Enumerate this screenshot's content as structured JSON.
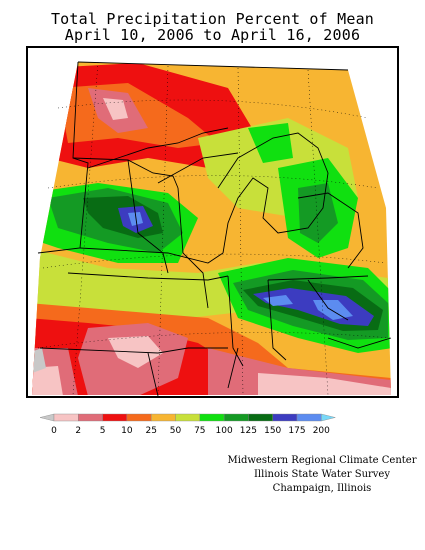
{
  "title": {
    "line1": "Total Precipitation Percent of Mean",
    "line2": "April 10, 2006 to April 16, 2006"
  },
  "legend": {
    "ticks": [
      "0",
      "2",
      "5",
      "10",
      "25",
      "50",
      "75",
      "100",
      "125",
      "150",
      "175",
      "200"
    ],
    "colors": [
      "#c8c8c8",
      "#f7c4c4",
      "#e06c78",
      "#ee1010",
      "#f56a1c",
      "#f7b532",
      "#c8e03a",
      "#10e010",
      "#149a24",
      "#086c14",
      "#3c3cc0",
      "#5c8cf0",
      "#78d8f8"
    ]
  },
  "credits": {
    "line1": "Midwestern Regional Climate Center",
    "line2": "Illinois State Water Survey",
    "line3": "Champaign, Illinois"
  }
}
